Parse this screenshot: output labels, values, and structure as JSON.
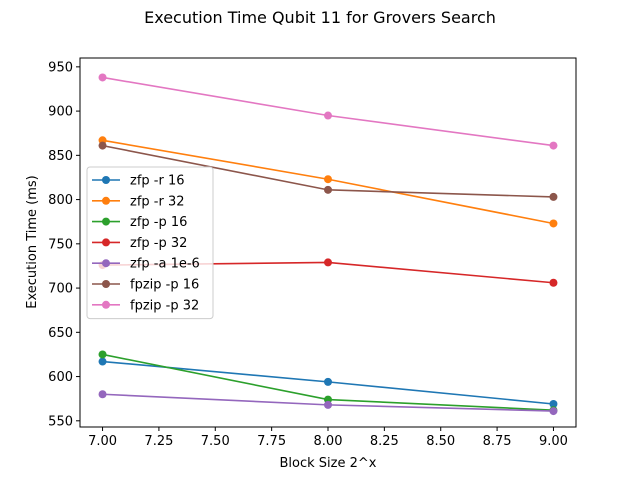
{
  "chart_data": {
    "type": "line",
    "title": "Execution Time Qubit 11 for Grovers Search",
    "xlabel": "Block Size 2^x",
    "ylabel": "Execution Time (ms)",
    "x": [
      7.0,
      8.0,
      9.0
    ],
    "xlim": [
      6.9,
      9.1
    ],
    "ylim": [
      543,
      960
    ],
    "xticks": [
      7.0,
      7.25,
      7.5,
      7.75,
      8.0,
      8.25,
      8.5,
      8.75,
      9.0
    ],
    "xtick_labels": [
      "7.00",
      "7.25",
      "7.50",
      "7.75",
      "8.00",
      "8.25",
      "8.50",
      "8.75",
      "9.00"
    ],
    "yticks": [
      550,
      600,
      650,
      700,
      750,
      800,
      850,
      900,
      950
    ],
    "ytick_labels": [
      "550",
      "600",
      "650",
      "700",
      "750",
      "800",
      "850",
      "900",
      "950"
    ],
    "grid": false,
    "legend_position": "center-left",
    "series": [
      {
        "name": "zfp -r 16",
        "color": "#1f77b4",
        "values": [
          617,
          594,
          569
        ]
      },
      {
        "name": "zfp -r 32",
        "color": "#ff7f0e",
        "values": [
          867,
          823,
          773
        ]
      },
      {
        "name": "zfp -p 16",
        "color": "#2ca02c",
        "values": [
          625,
          574,
          562
        ]
      },
      {
        "name": "zfp -p 32",
        "color": "#d62728",
        "values": [
          726,
          729,
          706
        ]
      },
      {
        "name": "zfp -a 1e-6",
        "color": "#9467bd",
        "values": [
          580,
          568,
          561
        ]
      },
      {
        "name": "fpzip -p 16",
        "color": "#8c564b",
        "values": [
          861,
          811,
          803
        ]
      },
      {
        "name": "fpzip -p 32",
        "color": "#e377c2",
        "values": [
          938,
          895,
          861
        ]
      }
    ]
  }
}
